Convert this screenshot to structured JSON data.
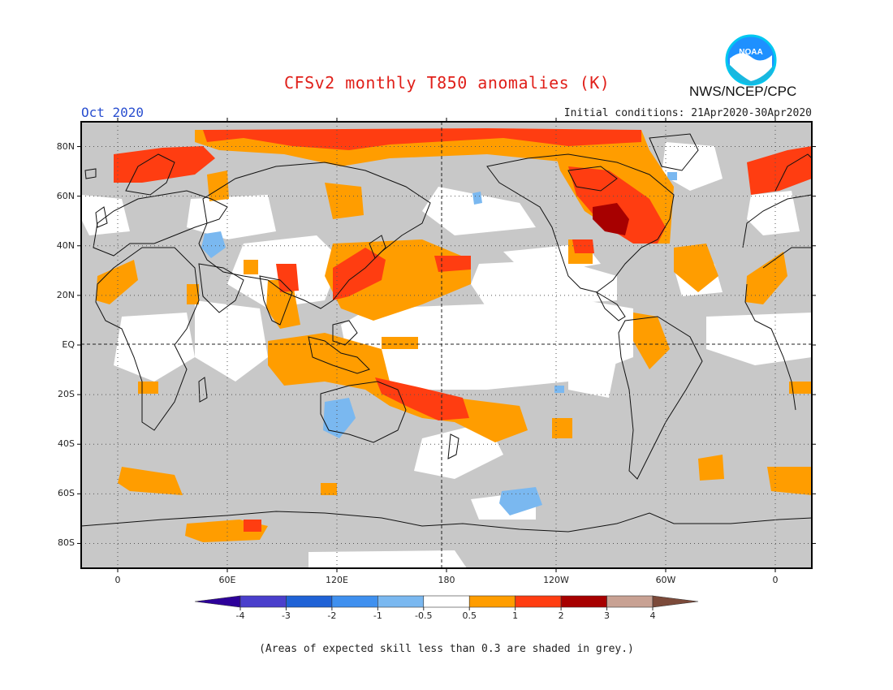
{
  "title": "CFSv2 monthly T850 anomalies (K)",
  "agency": "NWS/NCEP/CPC",
  "logo_text": "NOAA",
  "month_label": "Oct 2020",
  "initial_conditions": "Initial conditions: 21Apr2020-30Apr2020",
  "footer": "(Areas of expected skill less than 0.3 are shaded in grey.)",
  "map": {
    "lat_ticks": [
      {
        "label": "80N",
        "lat": 80
      },
      {
        "label": "60N",
        "lat": 60
      },
      {
        "label": "40N",
        "lat": 40
      },
      {
        "label": "20N",
        "lat": 20
      },
      {
        "label": "EQ",
        "lat": 0
      },
      {
        "label": "20S",
        "lat": -20
      },
      {
        "label": "40S",
        "lat": -40
      },
      {
        "label": "60S",
        "lat": -60
      },
      {
        "label": "80S",
        "lat": -80
      }
    ],
    "lon_ticks": [
      {
        "label": "0",
        "lon": 0
      },
      {
        "label": "60E",
        "lon": 60
      },
      {
        "label": "120E",
        "lon": 120
      },
      {
        "label": "180",
        "lon": 180
      },
      {
        "label": "120W",
        "lon": 240
      },
      {
        "label": "60W",
        "lon": 300
      },
      {
        "label": "0",
        "lon": 360
      }
    ],
    "lon_range": [
      -20,
      380
    ],
    "lat_range": [
      -90,
      90
    ],
    "grey_color": "#c8c8c8"
  },
  "colorbar": {
    "labels": [
      "-4",
      "-3",
      "-2",
      "-1",
      "-0.5",
      "0.5",
      "1",
      "2",
      "3",
      "4"
    ],
    "colors": [
      "#2d009a",
      "#4a3fcc",
      "#1f62d6",
      "#3f90ef",
      "#7ab8f0",
      "#ffffff",
      "#ff9d00",
      "#ff3d11",
      "#a70000",
      "#c8a193",
      "#7c4a3a"
    ]
  },
  "anomaly_regions": [
    {
      "name": "arctic-north-atlantic-warm",
      "level": "1-2",
      "color": "#ff3d11"
    },
    {
      "name": "north-america-warm-core",
      "level": "2-3",
      "color": "#a70000"
    },
    {
      "name": "north-america-warm",
      "level": "1-2",
      "color": "#ff3d11"
    },
    {
      "name": "west-pacific-warm",
      "level": "1-2",
      "color": "#ff3d11"
    },
    {
      "name": "south-pacific-warm",
      "level": "1-2",
      "color": "#ff3d11"
    },
    {
      "name": "tropical-pacific-neutral",
      "level": "-0.5-0.5",
      "color": "#ffffff"
    },
    {
      "name": "australia-cool",
      "level": "-1--0.5",
      "color": "#7ab8f0"
    },
    {
      "name": "southern-ocean-cool",
      "level": "-1--0.5",
      "color": "#7ab8f0"
    },
    {
      "name": "asia-cool",
      "level": "-1--0.5",
      "color": "#7ab8f0"
    }
  ]
}
